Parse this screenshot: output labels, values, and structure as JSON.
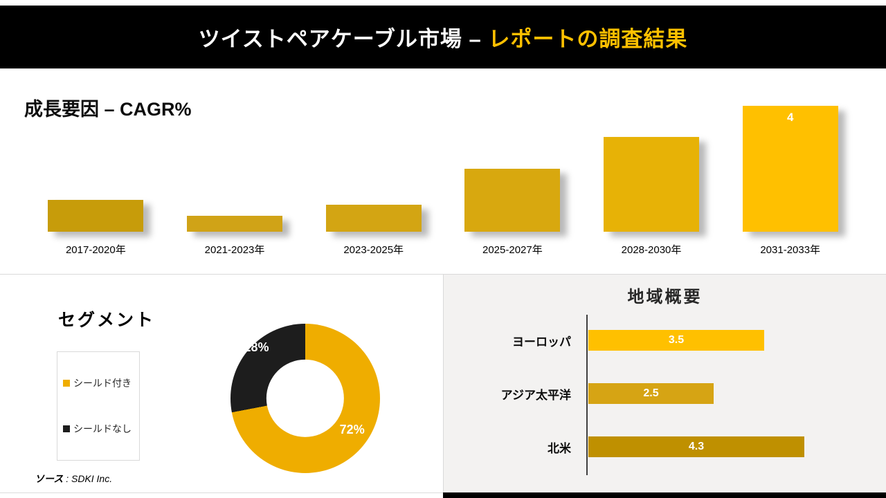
{
  "header": {
    "title_white": "ツイストペアケーブル市場 –",
    "title_accent": "レポートの調査結果",
    "accent_color": "#FFC000"
  },
  "source": {
    "prefix": "ソース",
    "text": " : SDKI Inc."
  },
  "chart_data": [
    {
      "id": "cagr_bars",
      "type": "bar",
      "title": "成長要因 – CAGR%",
      "categories": [
        "2017-2020年",
        "2021-2023年",
        "2023-2025年",
        "2025-2027年",
        "2028-2030年",
        "2031-2033年"
      ],
      "values": [
        1,
        0.5,
        0.85,
        2,
        3,
        4
      ],
      "data_labels": [
        "",
        "",
        "",
        "",
        "",
        "4"
      ],
      "colors": [
        "#C79C0A",
        "#D0A317",
        "#D3A513",
        "#D8A80F",
        "#E7B206",
        "#FFC000"
      ],
      "ylim": [
        0,
        4
      ],
      "grid": false,
      "legend": "none"
    },
    {
      "id": "segment_donut",
      "type": "pie",
      "title": "セグメント",
      "labels": [
        "シールド付き",
        "シールドなし"
      ],
      "values": [
        72,
        28
      ],
      "value_labels": [
        "72%",
        "28%"
      ],
      "colors": [
        "#EFAD00",
        "#1D1D1D"
      ],
      "hole": 0.52,
      "legend_position": "left"
    },
    {
      "id": "region_bars",
      "type": "bar",
      "orientation": "horizontal",
      "title": "地域概要",
      "categories": [
        "ヨーロッパ",
        "アジア太平洋",
        "北米"
      ],
      "values": [
        3.5,
        2.5,
        4.3
      ],
      "value_labels": [
        "3.5",
        "2.5",
        "4.3"
      ],
      "colors": [
        "#FFC000",
        "#D6A414",
        "#BF9000"
      ],
      "xlim": [
        0,
        4.3
      ]
    }
  ]
}
